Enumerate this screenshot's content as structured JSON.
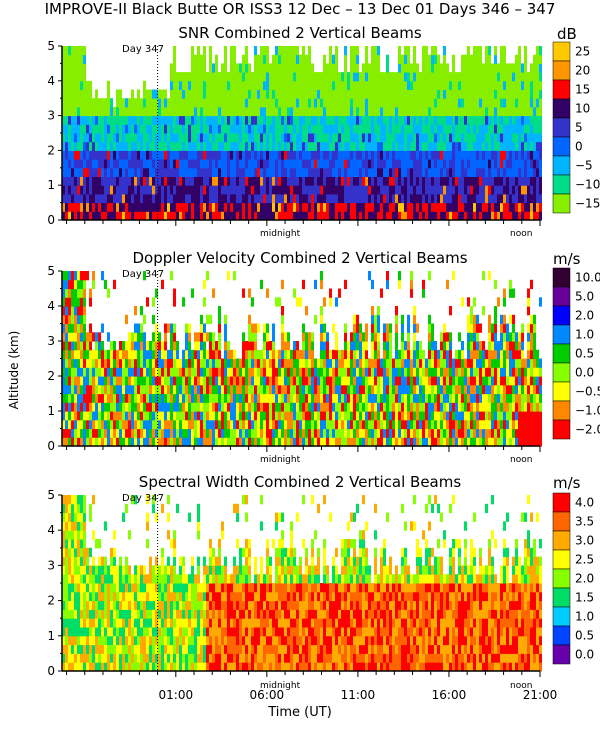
{
  "header": {
    "title": "IMPROVE-II  Black Butte OR  ISS3  12 Dec – 13 Dec 01 Days 346 – 347"
  },
  "x_axis": {
    "label": "Time (UT)",
    "ticks": [
      {
        "t": 1,
        "label": "01:00"
      },
      {
        "t": 6,
        "label": "06:00"
      },
      {
        "t": 11,
        "label": "11:00"
      },
      {
        "t": 16,
        "label": "16:00"
      },
      {
        "t": 21,
        "label": "21:00"
      }
    ],
    "range": [
      -5.25,
      21
    ],
    "local_marks": [
      {
        "t": 8,
        "label": "midnight"
      },
      {
        "t": 20,
        "label": "noon"
      }
    ],
    "day_marker": {
      "t": 0,
      "label": "Day 347"
    }
  },
  "y_axis": {
    "label": "Altitude (km)",
    "range": [
      0,
      5
    ],
    "ticks": [
      "0",
      "1",
      "2",
      "3",
      "4",
      "5"
    ]
  },
  "chart_data": [
    {
      "type": "heatmap",
      "title": "SNR Combined 2 Vertical Beams",
      "xlabel": "",
      "ylabel": "",
      "xlim": [
        -5.25,
        21
      ],
      "ylim": [
        0,
        5
      ],
      "colorbar": {
        "unit": "dB",
        "labels": [
          "25",
          "20",
          "15",
          "10",
          "5",
          "0",
          "−5",
          "−10",
          "−15"
        ],
        "colors": [
          "#ffc800",
          "#ff9600",
          "#ff0000",
          "#330066",
          "#3333cc",
          "#0066ff",
          "#00b4ff",
          "#00dd88",
          "#88ee00"
        ]
      }
    },
    {
      "type": "heatmap",
      "title": "Doppler Velocity Combined 2 Vertical Beams",
      "xlabel": "",
      "ylabel": "Altitude (km)",
      "xlim": [
        -5.25,
        21
      ],
      "ylim": [
        0,
        5
      ],
      "colorbar": {
        "unit": "m/s",
        "labels": [
          "10.0",
          "5.0",
          "2.0",
          "1.0",
          "0.5",
          "0.0",
          "−0.5",
          "−1.0",
          "−2.0"
        ],
        "colors": [
          "#330033",
          "#660099",
          "#0000ff",
          "#0088ff",
          "#00cc00",
          "#88ff00",
          "#ffff00",
          "#ff8800",
          "#ff0000"
        ]
      }
    },
    {
      "type": "heatmap",
      "title": "Spectral Width Combined 2 Vertical Beams",
      "xlabel": "Time (UT)",
      "ylabel": "",
      "xlim": [
        -5.25,
        21
      ],
      "ylim": [
        0,
        5
      ],
      "colorbar": {
        "unit": "m/s",
        "labels": [
          "4.0",
          "3.5",
          "3.0",
          "2.5",
          "2.0",
          "1.5",
          "1.0",
          "0.5",
          "0.0"
        ],
        "colors": [
          "#ff0000",
          "#ff6600",
          "#ffaa00",
          "#ffff00",
          "#88ff00",
          "#00dd66",
          "#00ccff",
          "#0044ff",
          "#6600aa"
        ]
      }
    }
  ]
}
